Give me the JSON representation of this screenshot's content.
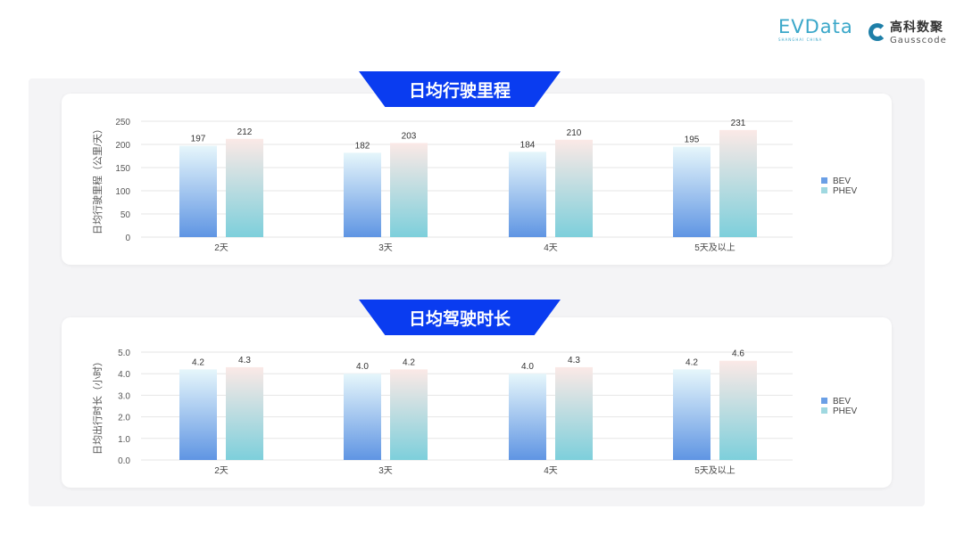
{
  "logos": {
    "evdata": "EVData",
    "evdata_sub": "SHANGHAI CHINA",
    "gauss_cn": "高科数聚",
    "gauss_en": "Gausscode"
  },
  "colors": {
    "banner": "#0a3cf0",
    "bev_top": "#e6f6fb",
    "bev_bottom": "#5f95e3",
    "phev_top": "#fbe9e6",
    "phev_bottom": "#7dcfdb"
  },
  "chart_data": [
    {
      "type": "bar",
      "title": "日均行驶里程",
      "ylabel": "日均行驶里程（公里/天）",
      "categories": [
        "2天",
        "3天",
        "4天",
        "5天及以上"
      ],
      "series": [
        {
          "name": "BEV",
          "values": [
            197,
            182,
            184,
            195
          ],
          "labels": [
            "197",
            "182",
            "184",
            "195"
          ]
        },
        {
          "name": "PHEV",
          "values": [
            212,
            203,
            210,
            231
          ],
          "labels": [
            "212",
            "203",
            "210",
            "231"
          ]
        }
      ],
      "ylim": [
        0,
        250
      ],
      "yticks": [
        "0",
        "50",
        "100",
        "150",
        "200",
        "250"
      ],
      "grid": true,
      "legend": "right"
    },
    {
      "type": "bar",
      "title": "日均驾驶时长",
      "ylabel": "日均出行时长（小时）",
      "categories": [
        "2天",
        "3天",
        "4天",
        "5天及以上"
      ],
      "series": [
        {
          "name": "BEV",
          "values": [
            4.2,
            4.0,
            4.0,
            4.2
          ],
          "labels": [
            "4.2",
            "4.0",
            "4.0",
            "4.2"
          ]
        },
        {
          "name": "PHEV",
          "values": [
            4.3,
            4.2,
            4.3,
            4.6
          ],
          "labels": [
            "4.3",
            "4.2",
            "4.3",
            "4.6"
          ]
        }
      ],
      "ylim": [
        0,
        5
      ],
      "yticks": [
        "0.0",
        "1.0",
        "2.0",
        "3.0",
        "4.0",
        "5.0"
      ],
      "grid": true,
      "legend": "right"
    }
  ]
}
